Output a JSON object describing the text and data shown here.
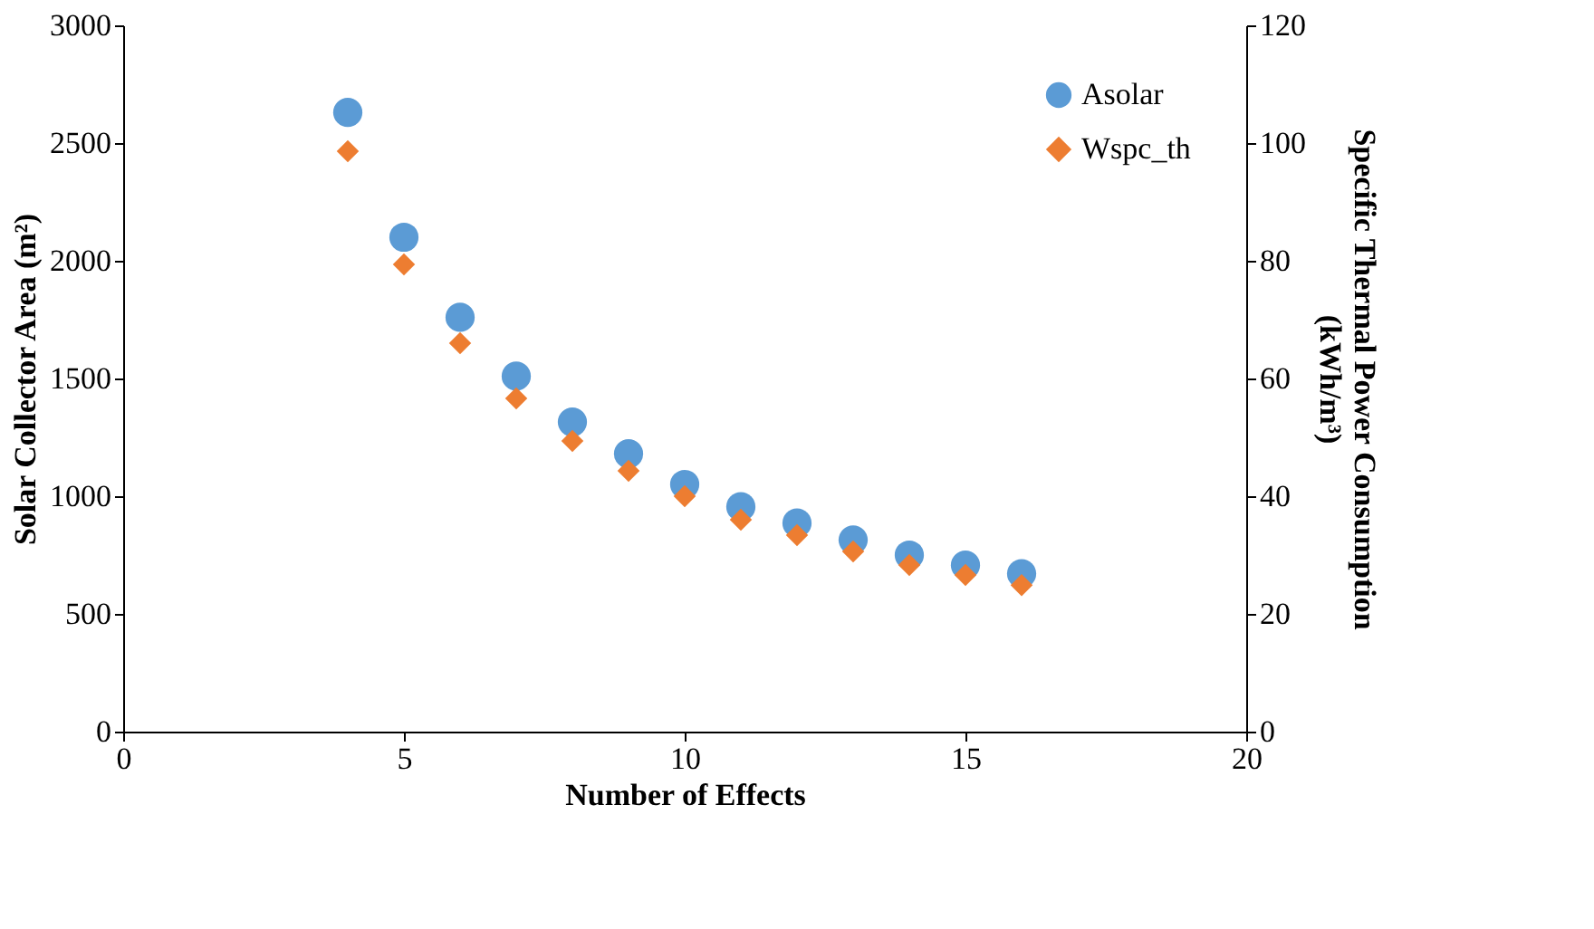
{
  "chart_data": {
    "type": "scatter",
    "xlabel": "Number  of Effects",
    "ylabel": "Solar Collector Area (m²)",
    "y2label": "Specific Thermal Power Consumption (kWh/m³)",
    "x": [
      4,
      5,
      6,
      7,
      8,
      9,
      10,
      11,
      12,
      13,
      14,
      15,
      16
    ],
    "xlim": [
      0,
      20
    ],
    "xticks": [
      0,
      5,
      10,
      15,
      20
    ],
    "ylim": [
      0,
      3000
    ],
    "yticks": [
      0,
      500,
      1000,
      1500,
      2000,
      2500,
      3000
    ],
    "y2lim": [
      0,
      120
    ],
    "y2ticks": [
      0,
      20,
      40,
      60,
      80,
      100,
      120
    ],
    "grid": false,
    "legend": "top right",
    "series": [
      {
        "name": "Asolar",
        "color": "#5b9bd5",
        "marker": "circle",
        "values": [
          2630,
          2100,
          1760,
          1510,
          1315,
          1180,
          1050,
          955,
          886,
          814,
          750,
          707,
          671
        ]
      },
      {
        "name": "Wspc_th",
        "color": "#ed7d31",
        "marker": "diamond",
        "axis": "y2",
        "values": [
          98.6,
          79.4,
          66,
          56.6,
          49.4,
          44.3,
          40,
          36,
          33.4,
          30.6,
          28.3,
          26.6,
          24.9
        ]
      }
    ]
  }
}
